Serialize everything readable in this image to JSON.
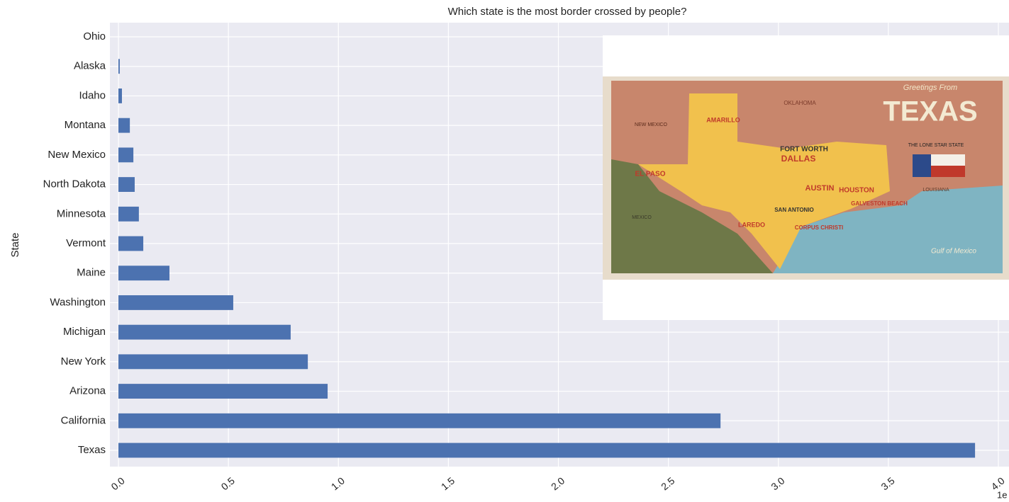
{
  "chart_data": {
    "type": "barh",
    "title": "Which state is the most border crossed by people?",
    "ylabel": "State",
    "categories": [
      "Ohio",
      "Alaska",
      "Idaho",
      "Montana",
      "New Mexico",
      "North Dakota",
      "Minnesota",
      "Vermont",
      "Maine",
      "Washington",
      "Michigan",
      "New York",
      "Arizona",
      "California",
      "Texas"
    ],
    "values": [
      0,
      0.006,
      0.016,
      0.052,
      0.068,
      0.074,
      0.093,
      0.113,
      0.232,
      0.522,
      0.783,
      0.861,
      0.951,
      2.737,
      3.894
    ],
    "color": "#4c72b0",
    "xlim": [
      0,
      4.0
    ],
    "xticks": [
      {
        "value": 0,
        "label": "0.0"
      },
      0.5,
      {
        "value": 1,
        "label": "1.0"
      },
      1.5,
      {
        "value": 2,
        "label": "2.0"
      },
      2.5,
      {
        "value": 3,
        "label": "3.0"
      },
      3.5,
      {
        "value": 4,
        "label": "4.0"
      }
    ],
    "x_offset_label": "1e",
    "grid": true
  },
  "inset_image": {
    "texts": [
      "Greetings From",
      "TEXAS",
      "THE LONE STAR STATE",
      "OKLAHOMA",
      "NEW MEXICO",
      "AMARILLO",
      "FORT WORTH",
      "DALLAS",
      "EL PASO",
      "AUSTIN",
      "HOUSTON",
      "SAN ANTONIO",
      "LAREDO",
      "CORPUS CHRISTI",
      "GALVESTON BEACH",
      "LOUISIANA",
      "MEXICO",
      "Gulf of Mexico"
    ]
  }
}
